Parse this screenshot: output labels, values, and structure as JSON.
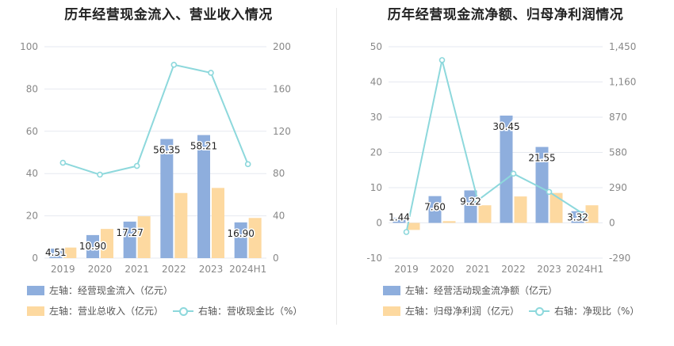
{
  "colors": {
    "bar_primary": "#8eaedd",
    "bar_secondary": "#fdd9a0",
    "line": "#8dd8dc",
    "grid": "#e6e9f0",
    "axis_text": "#888888"
  },
  "chart_data": [
    {
      "type": "bar",
      "title": "历年经营现金流入、营业收入情况",
      "categories": [
        "2019",
        "2020",
        "2021",
        "2022",
        "2023",
        "2024H1"
      ],
      "left_axis": {
        "ylim": [
          0,
          100
        ],
        "ticks": [
          "0",
          "20",
          "40",
          "60",
          "80",
          "100"
        ]
      },
      "right_axis": {
        "ylim": [
          0,
          200
        ],
        "ticks": [
          "0",
          "40",
          "80",
          "120",
          "160",
          "200"
        ]
      },
      "series": [
        {
          "name": "左轴：经营现金流入（亿元）",
          "type": "bar",
          "axis": "left",
          "values": [
            4.51,
            10.9,
            17.27,
            56.35,
            58.21,
            16.9
          ],
          "labels": [
            "4.51",
            "10.90",
            "17.27",
            "56.35",
            "58.21",
            "16.90"
          ]
        },
        {
          "name": "左轴：营业总收入（亿元）",
          "type": "bar",
          "axis": "left",
          "values": [
            5.0,
            13.8,
            19.8,
            30.8,
            33.2,
            19.0
          ]
        },
        {
          "name": "右轴：营收现金比（%）",
          "type": "line",
          "axis": "right",
          "values": [
            90.2,
            79.0,
            87.2,
            182.9,
            175.3,
            88.9
          ]
        }
      ],
      "legend": [
        {
          "label": "左轴：经营现金流入（亿元）",
          "kind": "bar",
          "series": 0
        },
        {
          "label": "左轴：营业总收入（亿元）",
          "kind": "bar",
          "series": 1
        },
        {
          "label": "右轴：营收现金比（%）",
          "kind": "line",
          "series": 2
        }
      ]
    },
    {
      "type": "bar",
      "title": "历年经营现金流净额、归母净利润情况",
      "categories": [
        "2019",
        "2020",
        "2021",
        "2022",
        "2023",
        "2024H1"
      ],
      "left_axis": {
        "ylim": [
          -10,
          50
        ],
        "ticks": [
          "-10",
          "0",
          "10",
          "20",
          "30",
          "40",
          "50"
        ]
      },
      "right_axis": {
        "ylim": [
          -290,
          1450
        ],
        "ticks": [
          "-290",
          "0",
          "290",
          "580",
          "870",
          "1,160",
          "1,450"
        ]
      },
      "series": [
        {
          "name": "左轴：经营活动现金流净额（亿元）",
          "type": "bar",
          "axis": "left",
          "values": [
            1.44,
            7.6,
            9.22,
            30.45,
            21.55,
            3.32
          ],
          "labels": [
            "1.44",
            "7.60",
            "9.22",
            "30.45",
            "21.55",
            "3.32"
          ]
        },
        {
          "name": "左轴：归母净利润（亿元）",
          "type": "bar",
          "axis": "left",
          "values": [
            -2.0,
            0.5,
            5.0,
            7.5,
            8.5,
            5.0
          ]
        },
        {
          "name": "右轴：净现比（%）",
          "type": "line",
          "axis": "right",
          "values": [
            -75,
            1340,
            185,
            405,
            255,
            66
          ]
        }
      ],
      "legend": [
        {
          "label": "左轴：经营活动现金流净额（亿元）",
          "kind": "bar",
          "series": 0
        },
        {
          "label": "左轴：归母净利润（亿元）",
          "kind": "bar",
          "series": 1
        },
        {
          "label": "右轴：净现比（%）",
          "kind": "line",
          "series": 2
        }
      ]
    }
  ]
}
